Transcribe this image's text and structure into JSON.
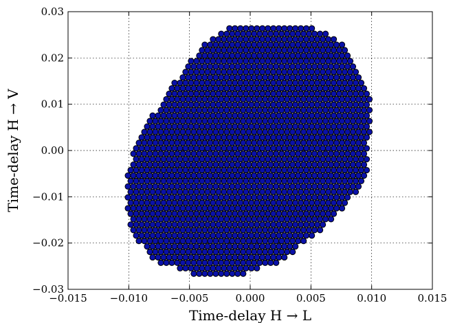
{
  "chart_data": {
    "type": "scatter",
    "title": "",
    "xlabel": "Time-delay H → L",
    "ylabel": "Time-delay H → V",
    "xlim": [
      -0.015,
      0.015
    ],
    "ylim": [
      -0.03,
      0.03
    ],
    "xticks": [
      -0.015,
      -0.01,
      -0.005,
      0.0,
      0.005,
      0.01,
      0.015
    ],
    "xtick_labels": [
      "−0.015",
      "−0.010",
      "−0.005",
      "0.000",
      "0.005",
      "0.010",
      "0.015"
    ],
    "yticks": [
      -0.03,
      -0.02,
      -0.01,
      0.0,
      0.01,
      0.02,
      0.03
    ],
    "ytick_labels": [
      "−0.03",
      "−0.02",
      "−0.01",
      "0.00",
      "0.01",
      "0.02",
      "0.03"
    ],
    "grid": true,
    "marker_color": "#0a11a8",
    "lattice": {
      "dx": 0.000452,
      "dy": 0.001178,
      "row_offset": 0.000226,
      "y0": -0.02662,
      "x_origin": -0.01007,
      "rows": 46
    },
    "region": {
      "left": [
        [
          -0.02662,
          -0.005
        ],
        [
          -0.024,
          -0.0077
        ],
        [
          -0.02,
          -0.0092
        ],
        [
          -0.016,
          -0.01
        ],
        [
          -0.011,
          -0.0103
        ],
        [
          -0.005,
          -0.0101
        ],
        [
          0.0,
          -0.0096
        ],
        [
          0.005,
          -0.0088
        ],
        [
          0.01,
          -0.0073
        ],
        [
          0.015,
          -0.0062
        ],
        [
          0.02,
          -0.0048
        ],
        [
          0.024,
          -0.0035
        ],
        [
          0.0262,
          -0.002
        ]
      ],
      "right": [
        [
          -0.02662,
          -0.0005
        ],
        [
          -0.024,
          0.0025
        ],
        [
          -0.02,
          0.0045
        ],
        [
          -0.015,
          0.0068
        ],
        [
          -0.01,
          0.0085
        ],
        [
          -0.005,
          0.0096
        ],
        [
          0.0,
          0.0096
        ],
        [
          0.005,
          0.0099
        ],
        [
          0.01,
          0.01
        ],
        [
          0.015,
          0.0095
        ],
        [
          0.02,
          0.0085
        ],
        [
          0.024,
          0.0072
        ],
        [
          0.0262,
          0.0055
        ]
      ]
    }
  }
}
